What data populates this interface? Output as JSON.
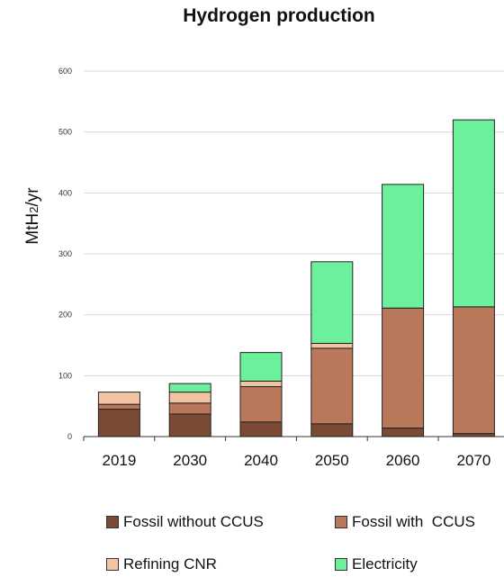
{
  "chart_data": {
    "type": "bar",
    "stacked": true,
    "title": "Hydrogen production",
    "ylabel_main": "MtH",
    "ylabel_sub": "2",
    "ylabel_tail": "/yr",
    "xlabel": "",
    "ylim": [
      0,
      600
    ],
    "yticks": [
      "0",
      "100",
      "200",
      "300",
      "400",
      "500",
      "600"
    ],
    "grid": true,
    "legend_position": "bottom",
    "categories": [
      "2019",
      "2030",
      "2040",
      "2050",
      "2060",
      "2070"
    ],
    "series": [
      {
        "name": "Fossil without CCUS",
        "color": "#7b4a35",
        "values": [
          45,
          37,
          24,
          21,
          14,
          5
        ]
      },
      {
        "name": "Fossil with  CCUS",
        "color": "#b9785a",
        "values": [
          8,
          18,
          58,
          124,
          197,
          208
        ]
      },
      {
        "name": "Refining CNR",
        "color": "#f3c4a4",
        "values": [
          20,
          18,
          9,
          8,
          0,
          0
        ]
      },
      {
        "name": "Electricity",
        "color": "#6cf09c",
        "values": [
          0,
          14,
          47,
          134,
          203,
          307
        ]
      }
    ]
  }
}
